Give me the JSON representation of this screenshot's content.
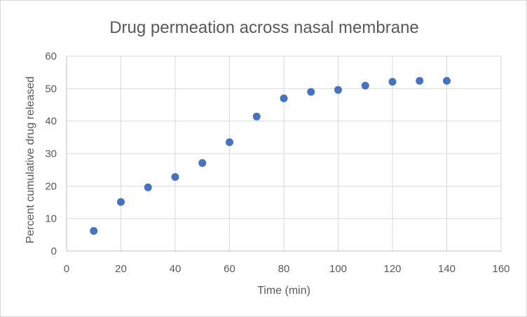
{
  "colors": {
    "marker": "#4472C4",
    "grid": "#d9d9d9",
    "text": "#595959"
  },
  "chart_data": {
    "type": "scatter",
    "title": "Drug permeation across nasal membrane",
    "xlabel": "Time (min)",
    "ylabel": "Percent cumulative drug released",
    "xlim": [
      0,
      160
    ],
    "ylim": [
      0,
      60
    ],
    "xticks": [
      "0",
      "20",
      "40",
      "60",
      "80",
      "100",
      "120",
      "140",
      "160"
    ],
    "yticks": [
      "0",
      "10",
      "20",
      "30",
      "40",
      "50",
      "60"
    ],
    "grid": true,
    "legend": "none",
    "x": [
      10,
      20,
      30,
      40,
      50,
      60,
      70,
      80,
      90,
      100,
      110,
      120,
      130,
      140
    ],
    "y": [
      6.2,
      15.1,
      19.6,
      22.8,
      27.1,
      33.5,
      41.4,
      47.0,
      49.0,
      49.6,
      50.9,
      52.1,
      52.4,
      52.4
    ]
  }
}
